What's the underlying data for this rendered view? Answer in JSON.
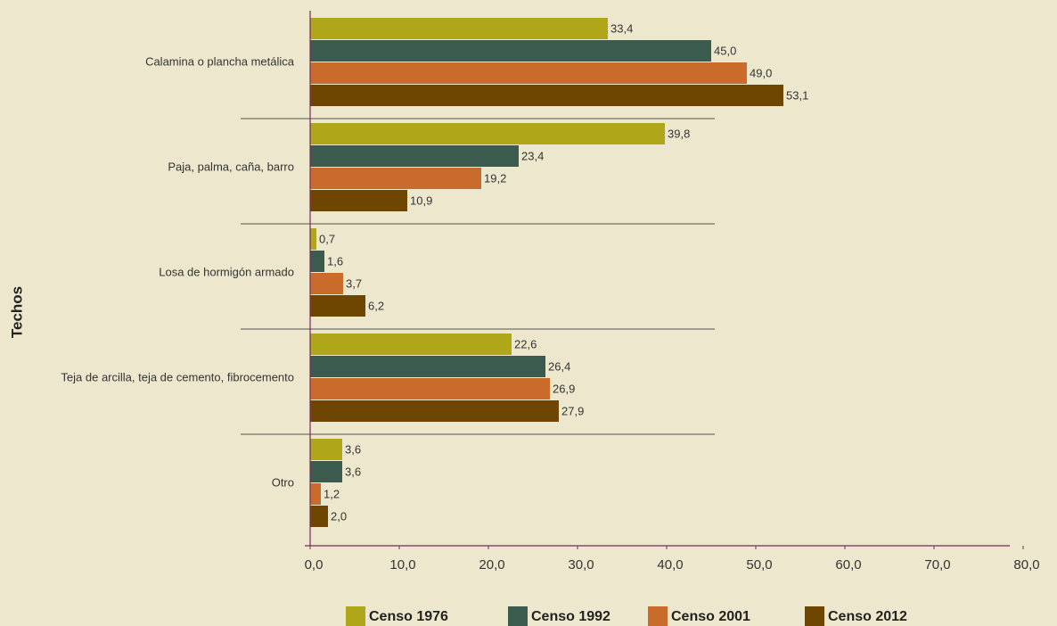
{
  "chart_data": {
    "type": "hbar",
    "y_label": "Techos",
    "categories": [
      "Calamina o plancha metálica",
      "Paja, palma, caña, barro",
      "Losa de hormigón armado",
      "Teja de arcilla, teja de cemento, fibrocemento",
      "Otro"
    ],
    "series": [
      {
        "name": "Censo 1976",
        "color": "#b0a619",
        "values": [
          33.4,
          39.8,
          0.7,
          22.6,
          3.6
        ],
        "value_labels": [
          "33,4",
          "39,8",
          "0,7",
          "22,6",
          "3,6"
        ]
      },
      {
        "name": "Censo 1992",
        "color": "#3b5b4f",
        "values": [
          45.0,
          23.4,
          1.6,
          26.4,
          3.6
        ],
        "value_labels": [
          "45,0",
          "23,4",
          "1,6",
          "26,4",
          "3,6"
        ]
      },
      {
        "name": "Censo 2001",
        "color": "#c86b2b",
        "values": [
          49.0,
          19.2,
          3.7,
          26.9,
          1.2
        ],
        "value_labels": [
          "49,0",
          "19,2",
          "3,7",
          "26,9",
          "1,2"
        ]
      },
      {
        "name": "Censo 2012",
        "color": "#6e4501",
        "values": [
          53.1,
          10.9,
          6.2,
          27.9,
          2.0
        ],
        "value_labels": [
          "53,1",
          "10,9",
          "6,2",
          "27,9",
          "2,0"
        ]
      }
    ],
    "xlim": [
      0,
      80
    ],
    "xticks": [
      {
        "value": 0,
        "label": "0,0"
      },
      {
        "value": 10,
        "label": "10,0"
      },
      {
        "value": 20,
        "label": "20,0"
      },
      {
        "value": 30,
        "label": "30,0"
      },
      {
        "value": 40,
        "label": "40,0"
      },
      {
        "value": 50,
        "label": "50,0"
      },
      {
        "value": 60,
        "label": "60,0"
      },
      {
        "value": 70,
        "label": "70,0"
      },
      {
        "value": 80,
        "label": "80,0"
      }
    ]
  }
}
